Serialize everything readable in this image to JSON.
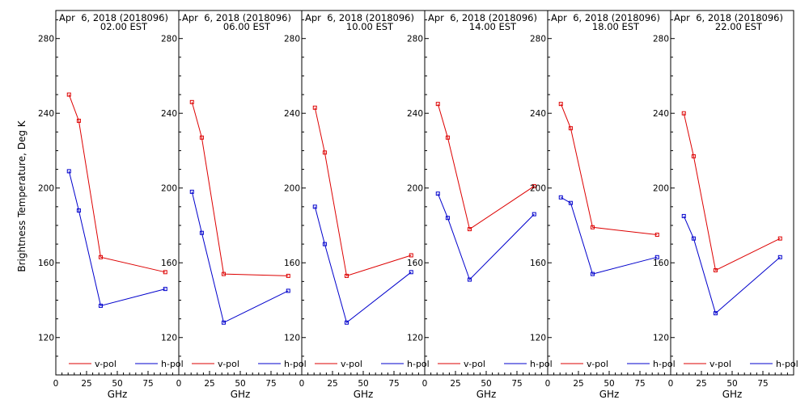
{
  "ylabel": "Brightness Temperature, Deg K",
  "colors": {
    "vpol": "#dd0000",
    "hpol": "#0000cc",
    "axis": "#000000",
    "background": "#ffffff"
  },
  "chart_data": [
    {
      "type": "line",
      "title": "Apr  6, 2018 (2018096)",
      "subtitle": "02.00 EST",
      "xlabel": "GHz",
      "ylabel": "Brightness Temperature, Deg K",
      "xticks": [
        "0",
        "25",
        "50",
        "75"
      ],
      "yticks": [
        "120",
        "160",
        "200",
        "240",
        "280"
      ],
      "xlim": [
        0,
        100
      ],
      "ylim": [
        100,
        295
      ],
      "x": [
        10.7,
        18.7,
        36.5,
        89
      ],
      "series": [
        {
          "name": "v-pol",
          "values": [
            250,
            236,
            163,
            155
          ]
        },
        {
          "name": "h-pol",
          "values": [
            209,
            188,
            137,
            146
          ]
        }
      ],
      "legend": "bottom"
    },
    {
      "type": "line",
      "title": "Apr  6, 2018 (2018096)",
      "subtitle": "06.00 EST",
      "xlabel": "GHz",
      "ylabel": "",
      "xticks": [
        "0",
        "25",
        "50",
        "75"
      ],
      "yticks": [
        "120",
        "160",
        "200",
        "240",
        "280"
      ],
      "xlim": [
        0,
        100
      ],
      "ylim": [
        100,
        295
      ],
      "x": [
        10.7,
        18.7,
        36.5,
        89
      ],
      "series": [
        {
          "name": "v-pol",
          "values": [
            246,
            227,
            154,
            153
          ]
        },
        {
          "name": "h-pol",
          "values": [
            198,
            176,
            128,
            145
          ]
        }
      ],
      "legend": "bottom"
    },
    {
      "type": "line",
      "title": "Apr  6, 2018 (2018096)",
      "subtitle": "10.00 EST",
      "xlabel": "GHz",
      "ylabel": "",
      "xticks": [
        "0",
        "25",
        "50",
        "75"
      ],
      "yticks": [
        "120",
        "160",
        "200",
        "240",
        "280"
      ],
      "xlim": [
        0,
        100
      ],
      "ylim": [
        100,
        295
      ],
      "x": [
        10.7,
        18.7,
        36.5,
        89
      ],
      "series": [
        {
          "name": "v-pol",
          "values": [
            243,
            219,
            153,
            164
          ]
        },
        {
          "name": "h-pol",
          "values": [
            190,
            170,
            128,
            155
          ]
        }
      ],
      "legend": "bottom"
    },
    {
      "type": "line",
      "title": "Apr  6, 2018 (2018096)",
      "subtitle": "14.00 EST",
      "xlabel": "GHz",
      "ylabel": "",
      "xticks": [
        "0",
        "25",
        "50",
        "75"
      ],
      "yticks": [
        "120",
        "160",
        "200",
        "240",
        "280"
      ],
      "xlim": [
        0,
        100
      ],
      "ylim": [
        100,
        295
      ],
      "x": [
        10.7,
        18.7,
        36.5,
        89
      ],
      "series": [
        {
          "name": "v-pol",
          "values": [
            245,
            227,
            178,
            201
          ]
        },
        {
          "name": "h-pol",
          "values": [
            197,
            184,
            151,
            186
          ]
        }
      ],
      "legend": "bottom"
    },
    {
      "type": "line",
      "title": "Apr  6, 2018 (2018096)",
      "subtitle": "18.00 EST",
      "xlabel": "GHz",
      "ylabel": "",
      "xticks": [
        "0",
        "25",
        "50",
        "75"
      ],
      "yticks": [
        "120",
        "160",
        "200",
        "240",
        "280"
      ],
      "xlim": [
        0,
        100
      ],
      "ylim": [
        100,
        295
      ],
      "x": [
        10.7,
        18.7,
        36.5,
        89
      ],
      "series": [
        {
          "name": "v-pol",
          "values": [
            245,
            232,
            179,
            175
          ]
        },
        {
          "name": "h-pol",
          "values": [
            195,
            192,
            154,
            163
          ]
        }
      ],
      "legend": "bottom"
    },
    {
      "type": "line",
      "title": "Apr  6, 2018 (2018096)",
      "subtitle": "22.00 EST",
      "xlabel": "GHz",
      "ylabel": "",
      "xticks": [
        "0",
        "25",
        "50",
        "75"
      ],
      "yticks": [
        "120",
        "160",
        "200",
        "240",
        "280"
      ],
      "xlim": [
        0,
        100
      ],
      "ylim": [
        100,
        295
      ],
      "x": [
        10.7,
        18.7,
        36.5,
        89
      ],
      "series": [
        {
          "name": "v-pol",
          "values": [
            240,
            217,
            156,
            173
          ]
        },
        {
          "name": "h-pol",
          "values": [
            185,
            173,
            133,
            163
          ]
        }
      ],
      "legend": "bottom"
    }
  ]
}
